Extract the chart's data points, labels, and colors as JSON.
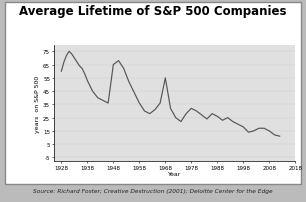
{
  "title": "Average Lifetime of S&P 500 Companies",
  "xlabel": "Year",
  "ylabel": "years  on S&P 500",
  "source": "Source: Richard Foster; Creative Destruction (2001); Deloitte Center for the Edge",
  "years": [
    1928,
    1929,
    1930,
    1931,
    1932,
    1933,
    1934,
    1935,
    1936,
    1937,
    1938,
    1940,
    1942,
    1944,
    1946,
    1948,
    1950,
    1952,
    1954,
    1956,
    1958,
    1960,
    1962,
    1964,
    1966,
    1968,
    1970,
    1972,
    1974,
    1976,
    1978,
    1980,
    1982,
    1984,
    1986,
    1988,
    1990,
    1992,
    1994,
    1996,
    1998,
    2000,
    2002,
    2004,
    2006,
    2008,
    2010,
    2012
  ],
  "values": [
    60,
    67,
    72,
    75,
    73,
    70,
    67,
    64,
    62,
    58,
    53,
    45,
    40,
    38,
    36,
    65,
    68,
    62,
    52,
    44,
    36,
    30,
    28,
    31,
    36,
    55,
    32,
    25,
    22,
    28,
    32,
    30,
    27,
    24,
    28,
    26,
    23,
    25,
    22,
    20,
    18,
    14,
    15,
    17,
    17,
    15,
    12,
    11
  ],
  "xticks": [
    1928,
    1938,
    1948,
    1958,
    1968,
    1978,
    1988,
    1998,
    2008,
    2018
  ],
  "xtick_labels": [
    "1928",
    "1938",
    "1948",
    "1958",
    "1968",
    "1978",
    "1988",
    "1998",
    "2008",
    "2018"
  ],
  "yticks": [
    -5,
    5,
    15,
    25,
    35,
    45,
    55,
    65,
    75
  ],
  "ytick_labels": [
    "-5",
    "5",
    "15",
    "25",
    "35",
    "45",
    "55",
    "65",
    "75"
  ],
  "ylim": [
    -8,
    80
  ],
  "xlim": [
    1925,
    2018
  ],
  "line_color": "#555555",
  "plot_bg": "#e0e0e0",
  "card_bg": "#ffffff",
  "outer_bg": "#bbbbbb",
  "border_color": "#888888",
  "title_fontsize": 8.5,
  "label_fontsize": 4.5,
  "tick_fontsize": 4.0,
  "source_fontsize": 4.2
}
